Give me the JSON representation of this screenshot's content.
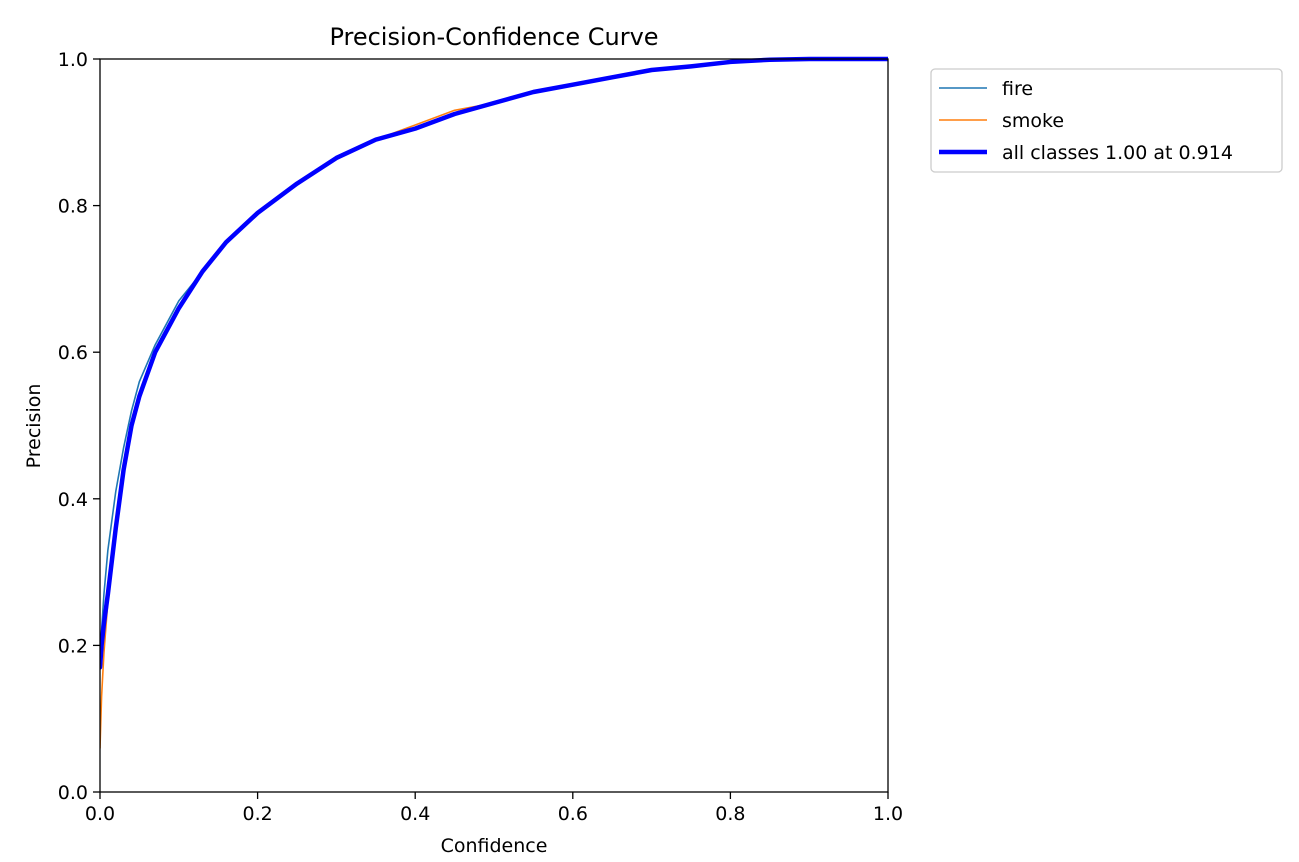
{
  "chart_data": {
    "type": "line",
    "title": "Precision-Confidence Curve",
    "xlabel": "Confidence",
    "ylabel": "Precision",
    "xlim": [
      0.0,
      1.0
    ],
    "ylim": [
      0.0,
      1.0
    ],
    "xticks": [
      "0.0",
      "0.2",
      "0.4",
      "0.6",
      "0.8",
      "1.0"
    ],
    "yticks": [
      "0.0",
      "0.2",
      "0.4",
      "0.6",
      "0.8",
      "1.0"
    ],
    "grid": false,
    "legend_position": "outside-top-right",
    "series": [
      {
        "name": "fire",
        "color": "#1f77b4",
        "width": "thin",
        "x": [
          0.0,
          0.002,
          0.005,
          0.01,
          0.02,
          0.03,
          0.04,
          0.05,
          0.07,
          0.1,
          0.13,
          0.16,
          0.2,
          0.25,
          0.3,
          0.35,
          0.4,
          0.45,
          0.5,
          0.55,
          0.6,
          0.65,
          0.7,
          0.75,
          0.8,
          0.85,
          0.9,
          0.95,
          1.0
        ],
        "y": [
          0.17,
          0.22,
          0.27,
          0.33,
          0.41,
          0.47,
          0.52,
          0.56,
          0.61,
          0.67,
          0.71,
          0.75,
          0.79,
          0.83,
          0.865,
          0.89,
          0.905,
          0.925,
          0.94,
          0.955,
          0.965,
          0.975,
          0.985,
          0.99,
          0.996,
          0.999,
          1.0,
          1.0,
          1.0
        ]
      },
      {
        "name": "smoke",
        "color": "#ff7f0e",
        "width": "thin",
        "x": [
          0.0,
          0.002,
          0.005,
          0.01,
          0.02,
          0.03,
          0.04,
          0.05,
          0.07,
          0.1,
          0.13,
          0.16,
          0.2,
          0.25,
          0.3,
          0.35,
          0.4,
          0.45,
          0.5,
          0.55,
          0.6,
          0.65,
          0.7,
          0.75,
          0.8,
          0.85,
          0.9,
          0.95,
          1.0
        ],
        "y": [
          0.06,
          0.13,
          0.19,
          0.26,
          0.36,
          0.44,
          0.5,
          0.54,
          0.6,
          0.66,
          0.71,
          0.75,
          0.79,
          0.83,
          0.865,
          0.89,
          0.91,
          0.93,
          0.94,
          0.955,
          0.965,
          0.975,
          0.985,
          0.99,
          0.996,
          0.999,
          1.0,
          1.0,
          1.0
        ]
      },
      {
        "name": "all classes 1.00 at 0.914",
        "color": "#0000ff",
        "width": "thick",
        "x": [
          0.0,
          0.002,
          0.005,
          0.01,
          0.02,
          0.03,
          0.04,
          0.05,
          0.07,
          0.1,
          0.13,
          0.16,
          0.2,
          0.25,
          0.3,
          0.35,
          0.4,
          0.45,
          0.5,
          0.55,
          0.6,
          0.65,
          0.7,
          0.75,
          0.8,
          0.85,
          0.9,
          0.95,
          1.0
        ],
        "y": [
          0.17,
          0.2,
          0.23,
          0.27,
          0.36,
          0.44,
          0.5,
          0.54,
          0.6,
          0.66,
          0.71,
          0.75,
          0.79,
          0.83,
          0.865,
          0.89,
          0.905,
          0.925,
          0.94,
          0.955,
          0.965,
          0.975,
          0.985,
          0.99,
          0.996,
          0.999,
          1.0,
          1.0,
          1.0
        ]
      }
    ]
  }
}
